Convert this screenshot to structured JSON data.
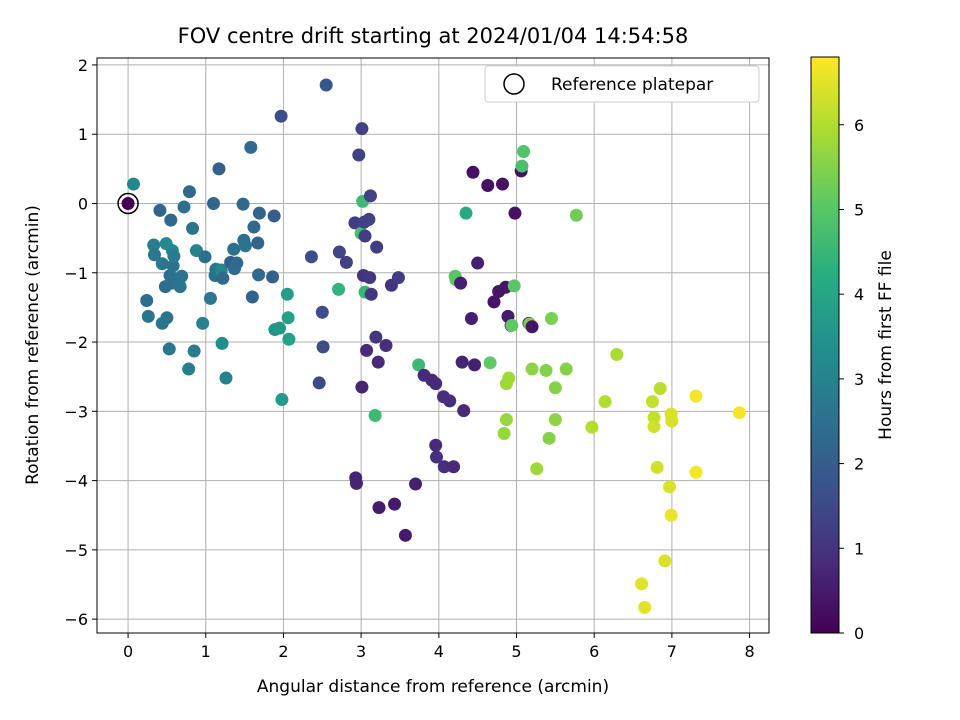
{
  "chart_data": {
    "type": "scatter",
    "title": "FOV centre drift starting at 2024/01/04 14:54:58",
    "xlabel": "Angular distance from reference (arcmin)",
    "ylabel": "Rotation from reference (arcmin)",
    "xlim": [
      -0.4,
      8.25
    ],
    "ylim": [
      -6.2,
      2.1
    ],
    "xticks": [
      0,
      1,
      2,
      3,
      4,
      5,
      6,
      7,
      8
    ],
    "yticks": [
      -6,
      -5,
      -4,
      -3,
      -2,
      -1,
      0,
      1,
      2
    ],
    "grid": true,
    "legend": {
      "label": "Reference platepar",
      "position": "top-right"
    },
    "reference_point": {
      "x": 0,
      "y": 0
    },
    "colorbar": {
      "label": "Hours from first FF file",
      "min": 0,
      "max": 6.8,
      "ticks": [
        0,
        1,
        2,
        3,
        4,
        5,
        6
      ],
      "colormap": "viridis"
    },
    "points": [
      {
        "x": 0.0,
        "y": 0.0,
        "h": 0.0
      },
      {
        "x": 0.07,
        "y": 0.28,
        "h": 3.1
      },
      {
        "x": 0.24,
        "y": -1.4,
        "h": 2.4
      },
      {
        "x": 0.26,
        "y": -1.63,
        "h": 2.6
      },
      {
        "x": 0.33,
        "y": -0.6,
        "h": 2.8
      },
      {
        "x": 0.34,
        "y": -0.74,
        "h": 2.7
      },
      {
        "x": 0.41,
        "y": -0.1,
        "h": 2.2
      },
      {
        "x": 0.44,
        "y": -0.87,
        "h": 2.7
      },
      {
        "x": 0.44,
        "y": -1.73,
        "h": 2.6
      },
      {
        "x": 0.48,
        "y": -1.2,
        "h": 2.4
      },
      {
        "x": 0.49,
        "y": -0.58,
        "h": 3.2
      },
      {
        "x": 0.5,
        "y": -1.65,
        "h": 2.6
      },
      {
        "x": 0.53,
        "y": -2.1,
        "h": 2.7
      },
      {
        "x": 0.54,
        "y": -1.04,
        "h": 2.5
      },
      {
        "x": 0.55,
        "y": -0.24,
        "h": 2.3
      },
      {
        "x": 0.56,
        "y": -1.15,
        "h": 2.5
      },
      {
        "x": 0.57,
        "y": -0.68,
        "h": 3.1
      },
      {
        "x": 0.58,
        "y": -0.9,
        "h": 2.6
      },
      {
        "x": 0.59,
        "y": -0.76,
        "h": 2.8
      },
      {
        "x": 0.67,
        "y": -1.2,
        "h": 2.6
      },
      {
        "x": 0.69,
        "y": -1.05,
        "h": 2.6
      },
      {
        "x": 0.72,
        "y": -0.05,
        "h": 2.5
      },
      {
        "x": 0.78,
        "y": -2.39,
        "h": 2.9
      },
      {
        "x": 0.79,
        "y": 0.17,
        "h": 2.3
      },
      {
        "x": 0.83,
        "y": -0.36,
        "h": 2.6
      },
      {
        "x": 0.85,
        "y": -2.13,
        "h": 2.8
      },
      {
        "x": 0.88,
        "y": -0.68,
        "h": 3.0
      },
      {
        "x": 0.96,
        "y": -1.73,
        "h": 3.0
      },
      {
        "x": 0.99,
        "y": -0.77,
        "h": 2.5
      },
      {
        "x": 1.06,
        "y": -1.37,
        "h": 2.7
      },
      {
        "x": 1.1,
        "y": 0.0,
        "h": 2.2
      },
      {
        "x": 1.12,
        "y": -1.04,
        "h": 2.5
      },
      {
        "x": 1.13,
        "y": -0.95,
        "h": 2.6
      },
      {
        "x": 1.17,
        "y": 0.5,
        "h": 2.1
      },
      {
        "x": 1.2,
        "y": -0.96,
        "h": 3.1
      },
      {
        "x": 1.21,
        "y": -2.02,
        "h": 3.3
      },
      {
        "x": 1.22,
        "y": -1.08,
        "h": 2.3
      },
      {
        "x": 1.26,
        "y": -2.52,
        "h": 3.0
      },
      {
        "x": 1.32,
        "y": -0.85,
        "h": 2.1
      },
      {
        "x": 1.36,
        "y": -0.66,
        "h": 2.5
      },
      {
        "x": 1.37,
        "y": -0.94,
        "h": 2.4
      },
      {
        "x": 1.4,
        "y": -0.86,
        "h": 2.3
      },
      {
        "x": 1.48,
        "y": -0.01,
        "h": 2.3
      },
      {
        "x": 1.49,
        "y": -0.53,
        "h": 2.4
      },
      {
        "x": 1.51,
        "y": -0.61,
        "h": 2.6
      },
      {
        "x": 1.58,
        "y": 0.81,
        "h": 2.3
      },
      {
        "x": 1.6,
        "y": -1.35,
        "h": 2.2
      },
      {
        "x": 1.62,
        "y": -0.34,
        "h": 2.3
      },
      {
        "x": 1.67,
        "y": -0.57,
        "h": 2.2
      },
      {
        "x": 1.68,
        "y": -1.03,
        "h": 2.3
      },
      {
        "x": 1.69,
        "y": -0.14,
        "h": 2.2
      },
      {
        "x": 1.86,
        "y": -1.06,
        "h": 2.1
      },
      {
        "x": 1.88,
        "y": -0.18,
        "h": 2.0
      },
      {
        "x": 1.89,
        "y": -1.82,
        "h": 3.5
      },
      {
        "x": 1.95,
        "y": -1.8,
        "h": 3.6
      },
      {
        "x": 1.97,
        "y": 1.26,
        "h": 1.6
      },
      {
        "x": 1.98,
        "y": -2.83,
        "h": 3.7
      },
      {
        "x": 2.05,
        "y": -1.31,
        "h": 3.8
      },
      {
        "x": 2.06,
        "y": -1.65,
        "h": 3.9
      },
      {
        "x": 2.07,
        "y": -1.96,
        "h": 3.9
      },
      {
        "x": 2.36,
        "y": -0.77,
        "h": 1.6
      },
      {
        "x": 2.46,
        "y": -2.59,
        "h": 1.5
      },
      {
        "x": 2.5,
        "y": -1.57,
        "h": 1.6
      },
      {
        "x": 2.51,
        "y": -2.07,
        "h": 1.6
      },
      {
        "x": 2.55,
        "y": 1.71,
        "h": 1.8
      },
      {
        "x": 2.71,
        "y": -1.24,
        "h": 4.4
      },
      {
        "x": 2.72,
        "y": -0.7,
        "h": 1.4
      },
      {
        "x": 2.81,
        "y": -0.85,
        "h": 1.3
      },
      {
        "x": 2.92,
        "y": -0.28,
        "h": 1.2
      },
      {
        "x": 2.93,
        "y": -3.96,
        "h": 0.7
      },
      {
        "x": 2.94,
        "y": -4.04,
        "h": 0.7
      },
      {
        "x": 2.97,
        "y": 0.7,
        "h": 1.3
      },
      {
        "x": 3.0,
        "y": -0.43,
        "h": 4.7
      },
      {
        "x": 3.01,
        "y": -2.65,
        "h": 0.7
      },
      {
        "x": 3.01,
        "y": 1.08,
        "h": 1.3
      },
      {
        "x": 3.02,
        "y": 0.03,
        "h": 4.6
      },
      {
        "x": 3.03,
        "y": -1.04,
        "h": 1.0
      },
      {
        "x": 3.04,
        "y": -0.27,
        "h": 1.3
      },
      {
        "x": 3.05,
        "y": -0.47,
        "h": 1.2
      },
      {
        "x": 3.05,
        "y": -1.28,
        "h": 4.5
      },
      {
        "x": 3.07,
        "y": -2.12,
        "h": 0.8
      },
      {
        "x": 3.1,
        "y": -0.23,
        "h": 1.3
      },
      {
        "x": 3.11,
        "y": -1.07,
        "h": 1.1
      },
      {
        "x": 3.12,
        "y": 0.11,
        "h": 1.3
      },
      {
        "x": 3.13,
        "y": -1.31,
        "h": 1.1
      },
      {
        "x": 3.18,
        "y": -3.06,
        "h": 4.6
      },
      {
        "x": 3.19,
        "y": -1.93,
        "h": 1.1
      },
      {
        "x": 3.2,
        "y": -0.63,
        "h": 1.2
      },
      {
        "x": 3.22,
        "y": -2.29,
        "h": 0.8
      },
      {
        "x": 3.23,
        "y": -4.39,
        "h": 0.5
      },
      {
        "x": 3.32,
        "y": -2.05,
        "h": 0.9
      },
      {
        "x": 3.39,
        "y": -1.18,
        "h": 1.0
      },
      {
        "x": 3.43,
        "y": -4.34,
        "h": 0.5
      },
      {
        "x": 3.48,
        "y": -1.07,
        "h": 1.2
      },
      {
        "x": 3.57,
        "y": -4.79,
        "h": 0.5
      },
      {
        "x": 3.7,
        "y": -4.05,
        "h": 0.6
      },
      {
        "x": 3.74,
        "y": -2.33,
        "h": 4.6
      },
      {
        "x": 3.81,
        "y": -2.48,
        "h": 0.8
      },
      {
        "x": 3.91,
        "y": -2.55,
        "h": 0.8
      },
      {
        "x": 3.96,
        "y": -2.6,
        "h": 0.8
      },
      {
        "x": 3.96,
        "y": -3.49,
        "h": 0.8
      },
      {
        "x": 3.97,
        "y": -3.66,
        "h": 0.9
      },
      {
        "x": 4.06,
        "y": -2.79,
        "h": 0.9
      },
      {
        "x": 4.07,
        "y": -3.8,
        "h": 0.9
      },
      {
        "x": 4.14,
        "y": -2.85,
        "h": 0.9
      },
      {
        "x": 4.19,
        "y": -3.8,
        "h": 0.8
      },
      {
        "x": 4.21,
        "y": -1.05,
        "h": 5.0
      },
      {
        "x": 4.22,
        "y": -1.1,
        "h": 5.0
      },
      {
        "x": 4.28,
        "y": -1.15,
        "h": 0.6
      },
      {
        "x": 4.3,
        "y": -2.29,
        "h": 0.7
      },
      {
        "x": 4.32,
        "y": -2.99,
        "h": 0.8
      },
      {
        "x": 4.35,
        "y": -0.14,
        "h": 4.1
      },
      {
        "x": 4.42,
        "y": -1.66,
        "h": 0.6
      },
      {
        "x": 4.44,
        "y": 0.45,
        "h": 0.3
      },
      {
        "x": 4.46,
        "y": -2.33,
        "h": 0.6
      },
      {
        "x": 4.5,
        "y": -0.86,
        "h": 0.6
      },
      {
        "x": 4.63,
        "y": 0.26,
        "h": 0.3
      },
      {
        "x": 4.66,
        "y": -2.3,
        "h": 5.1
      },
      {
        "x": 4.71,
        "y": -1.42,
        "h": 0.4
      },
      {
        "x": 4.77,
        "y": -1.27,
        "h": 0.4
      },
      {
        "x": 4.82,
        "y": 0.28,
        "h": 0.3
      },
      {
        "x": 4.84,
        "y": -3.32,
        "h": 5.7
      },
      {
        "x": 4.86,
        "y": -1.21,
        "h": 0.4
      },
      {
        "x": 4.87,
        "y": -2.6,
        "h": 5.8
      },
      {
        "x": 4.87,
        "y": -3.12,
        "h": 5.7
      },
      {
        "x": 4.89,
        "y": -1.63,
        "h": 0.5
      },
      {
        "x": 4.9,
        "y": -2.52,
        "h": 5.8
      },
      {
        "x": 4.93,
        "y": -1.76,
        "h": 0.5
      },
      {
        "x": 4.94,
        "y": -1.76,
        "h": 5.1
      },
      {
        "x": 4.97,
        "y": -1.19,
        "h": 5.0
      },
      {
        "x": 4.98,
        "y": -0.14,
        "h": 0.3
      },
      {
        "x": 5.06,
        "y": 0.47,
        "h": 0.3
      },
      {
        "x": 5.07,
        "y": 0.54,
        "h": 4.8
      },
      {
        "x": 5.09,
        "y": 0.75,
        "h": 4.9
      },
      {
        "x": 5.16,
        "y": -1.73,
        "h": 0.6
      },
      {
        "x": 5.17,
        "y": -1.74,
        "h": 5.4
      },
      {
        "x": 5.2,
        "y": -1.78,
        "h": 0.4
      },
      {
        "x": 5.2,
        "y": -2.39,
        "h": 5.6
      },
      {
        "x": 5.26,
        "y": -3.83,
        "h": 5.8
      },
      {
        "x": 5.38,
        "y": -2.41,
        "h": 5.5
      },
      {
        "x": 5.42,
        "y": -3.39,
        "h": 5.5
      },
      {
        "x": 5.45,
        "y": -1.66,
        "h": 5.4
      },
      {
        "x": 5.5,
        "y": -3.12,
        "h": 5.6
      },
      {
        "x": 5.5,
        "y": -2.66,
        "h": 5.5
      },
      {
        "x": 5.64,
        "y": -2.39,
        "h": 5.5
      },
      {
        "x": 5.77,
        "y": -0.17,
        "h": 5.3
      },
      {
        "x": 5.97,
        "y": -3.23,
        "h": 6.0
      },
      {
        "x": 6.14,
        "y": -2.86,
        "h": 6.0
      },
      {
        "x": 6.29,
        "y": -2.18,
        "h": 5.9
      },
      {
        "x": 6.61,
        "y": -5.49,
        "h": 6.5
      },
      {
        "x": 6.65,
        "y": -5.83,
        "h": 6.5
      },
      {
        "x": 6.75,
        "y": -2.86,
        "h": 6.2
      },
      {
        "x": 6.77,
        "y": -3.09,
        "h": 6.2
      },
      {
        "x": 6.77,
        "y": -3.22,
        "h": 6.3
      },
      {
        "x": 6.81,
        "y": -3.81,
        "h": 6.3
      },
      {
        "x": 6.85,
        "y": -2.67,
        "h": 6.1
      },
      {
        "x": 6.91,
        "y": -5.16,
        "h": 6.4
      },
      {
        "x": 6.97,
        "y": -4.09,
        "h": 6.4
      },
      {
        "x": 6.99,
        "y": -4.5,
        "h": 6.6
      },
      {
        "x": 6.99,
        "y": -3.04,
        "h": 6.4
      },
      {
        "x": 7.0,
        "y": -3.14,
        "h": 6.4
      },
      {
        "x": 7.31,
        "y": -2.78,
        "h": 6.7
      },
      {
        "x": 7.31,
        "y": -3.88,
        "h": 6.7
      },
      {
        "x": 7.87,
        "y": -3.02,
        "h": 6.7
      }
    ]
  }
}
